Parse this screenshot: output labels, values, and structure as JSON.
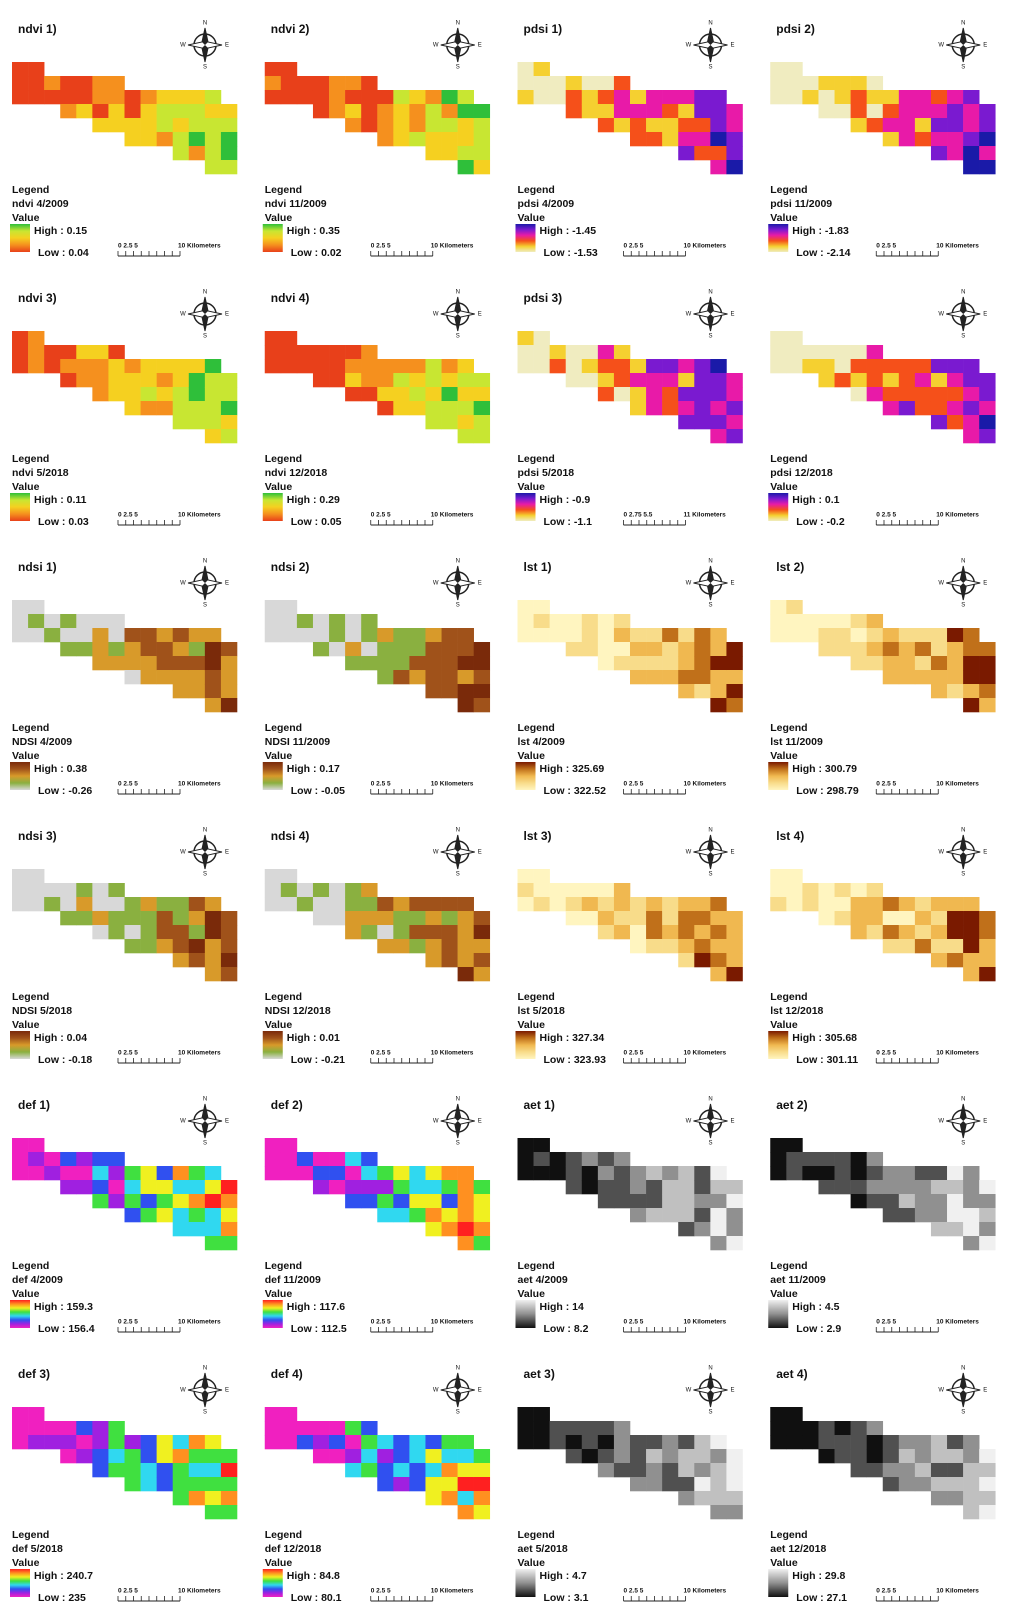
{
  "compass": [
    "N",
    "E",
    "S",
    "W"
  ],
  "groups": [
    {
      "colors": [
        "#2fbf3a",
        "#c8e632",
        "#f5d020",
        "#f5901e",
        "#e8401a"
      ],
      "panels": [
        {
          "title": "ndvi 1)",
          "legend": "Legend",
          "layer": "ndvi 4/2009",
          "value": "Value",
          "high": "High : 0.15",
          "low": "Low : 0.04",
          "scale": [
            "0 2.5 5",
            "10 Kilometers"
          ]
        },
        {
          "title": "ndvi 2)",
          "legend": "Legend",
          "layer": "ndvi 11/2009",
          "value": "Value",
          "high": "High : 0.35",
          "low": "Low : 0.02",
          "scale": [
            "0 2.5 5",
            "10 Kilometers"
          ]
        },
        {
          "title": "ndvi 3)",
          "legend": "Legend",
          "layer": "ndvi 5/2018",
          "value": "Value",
          "high": "High : 0.11",
          "low": "Low : 0.03",
          "scale": [
            "0 2.5 5",
            "10 Kilometers"
          ]
        },
        {
          "title": "ndvi 4)",
          "legend": "Legend",
          "layer": "ndvi 12/2018",
          "value": "Value",
          "high": "High : 0.29",
          "low": "Low : 0.05",
          "scale": [
            "0 2.5 5",
            "10 Kilometers"
          ]
        }
      ]
    },
    {
      "colors": [
        "#1a1aa8",
        "#7a1ad0",
        "#e81aa8",
        "#f5501a",
        "#f5d030",
        "#f0ecc0"
      ],
      "panels": [
        {
          "title": "pdsi 1)",
          "legend": "Legend",
          "layer": "pdsi 4/2009",
          "value": "Value",
          "high": "High : -1.45",
          "low": "Low : -1.53",
          "scale": [
            "0 2.5 5",
            "10 Kilometers"
          ]
        },
        {
          "title": "pdsi 2)",
          "legend": "Legend",
          "layer": "pdsi 11/2009",
          "value": "Value",
          "high": "High : -1.83",
          "low": "Low : -2.14",
          "scale": [
            "0 2.5 5",
            "10 Kilometers"
          ]
        },
        {
          "title": "pdsi 3)",
          "legend": "Legend",
          "layer": "pdsi 5/2018",
          "value": "Value",
          "high": "High : -0.9",
          "low": "Low : -1.1",
          "scale": [
            "0 2.75 5.5",
            "11 Kilometers"
          ]
        },
        {
          "legend": "Legend",
          "layer": "pdsi 12/2018",
          "value": "Value",
          "high": "High : 0.1",
          "low": "Low : -0.2",
          "scale": [
            "0 2.5 5",
            "10 Kilometers"
          ]
        }
      ]
    },
    {
      "colors": [
        "#7a2a0a",
        "#a0521a",
        "#d89a2a",
        "#8ab040",
        "#d8d8d8"
      ],
      "panels": [
        {
          "title": "ndsi 1)",
          "legend": "Legend",
          "layer": "NDSI 4/2009",
          "value": "Value",
          "high": "High : 0.38",
          "low": "Low : -0.26",
          "scale": [
            "0 2.5 5",
            "10 Kilometers"
          ]
        },
        {
          "title": "ndsi 2)",
          "legend": "Legend",
          "layer": "NDSI 11/2009",
          "value": "Value",
          "high": "High : 0.17",
          "low": "Low : -0.05",
          "scale": [
            "0 2.5 5",
            "10 Kilometers"
          ]
        },
        {
          "title": "ndsi 3)",
          "legend": "Legend",
          "layer": "NDSI 5/2018",
          "value": "Value",
          "high": "High : 0.04",
          "low": "Low : -0.18",
          "scale": [
            "0 2.5 5",
            "10 Kilometers"
          ]
        },
        {
          "title": "ndsi 4)",
          "legend": "Legend",
          "layer": "NDSI 12/2018",
          "value": "Value",
          "high": "High : 0.01",
          "low": "Low : -0.21",
          "scale": [
            "0 2.5 5",
            "10 Kilometers"
          ]
        }
      ]
    },
    {
      "colors": [
        "#7a1a00",
        "#c0701a",
        "#f0b850",
        "#f8dc8a",
        "#fff5c0"
      ],
      "panels": [
        {
          "title": "lst 1)",
          "legend": "Legend",
          "layer": "lst 4/2009",
          "value": "Value",
          "high": "High : 325.69",
          "low": "Low : 322.52",
          "scale": [
            "0 2.5 5",
            "10 Kilometers"
          ]
        },
        {
          "title": "lst 2)",
          "legend": "Legend",
          "layer": "lst 11/2009",
          "value": "Value",
          "high": "High : 300.79",
          "low": "Low : 298.79",
          "scale": [
            "0 2.5 5",
            "10 Kilometers"
          ]
        },
        {
          "title": "lst 3)",
          "legend": "Legend",
          "layer": "lst 5/2018",
          "value": "Value",
          "high": "High : 327.34",
          "low": "Low : 323.93",
          "scale": [
            "0 2.5 5",
            "10 Kilometers"
          ]
        },
        {
          "title": "lst 4)",
          "legend": "Legend",
          "layer": "lst 12/2018",
          "value": "Value",
          "high": "High : 305.68",
          "low": "Low : 301.11",
          "scale": [
            "0 2.5 5",
            "10 Kilometers"
          ]
        }
      ]
    },
    {
      "colors": [
        "#ff2020",
        "#ff9020",
        "#f0f020",
        "#40e040",
        "#30d8f0",
        "#3050f0",
        "#a020e0",
        "#f020c0"
      ],
      "panels": [
        {
          "title": "def 1)",
          "legend": "Legend",
          "layer": "def 4/2009",
          "value": "Value",
          "high": "High : 159.3",
          "low": "Low : 156.4",
          "scale": [
            "0 2.5 5",
            "10 Kilometers"
          ]
        },
        {
          "title": "def 2)",
          "legend": "Legend",
          "layer": "def 11/2009",
          "value": "Value",
          "high": "High : 117.6",
          "low": "Low : 112.5",
          "scale": [
            "0 2.5 5",
            "10 Kilometers"
          ]
        },
        {
          "title": "def 3)",
          "legend": "Legend",
          "layer": "def 5/2018",
          "value": "Value",
          "high": "High : 240.7",
          "low": "Low : 235",
          "scale": [
            "0 2.5 5",
            "10 Kilometers"
          ]
        },
        {
          "title": "def 4)",
          "legend": "Legend",
          "layer": "def 12/2018",
          "value": "Value",
          "high": "High : 84.8",
          "low": "Low : 80.1",
          "scale": [
            "0 2.5 5",
            "10 Kilometers"
          ]
        }
      ]
    },
    {
      "colors": [
        "#f0f0f0",
        "#c0c0c0",
        "#909090",
        "#505050",
        "#101010"
      ],
      "panels": [
        {
          "title": "aet 1)",
          "legend": "Legend",
          "layer": "aet 4/2009",
          "value": "Value",
          "high": "High : 14",
          "low": "Low : 8.2",
          "scale": [
            "0 2.5 5",
            "10 Kilometers"
          ]
        },
        {
          "title": "aet 2)",
          "legend": "Legend",
          "layer": "aet 11/2009",
          "value": "Value",
          "high": "High : 4.5",
          "low": "Low : 2.9",
          "scale": [
            "0 2.5 5",
            "10 Kilometers"
          ]
        },
        {
          "title": "aet 3)",
          "legend": "Legend",
          "layer": "aet 5/2018",
          "value": "Value",
          "high": "High : 4.7",
          "low": "Low : 3.1",
          "scale": [
            "0 2.5 5",
            "10 Kilometers"
          ]
        },
        {
          "title": "aet 4)",
          "legend": "Legend",
          "layer": "aet 12/2018",
          "value": "Value",
          "high": "High : 29.8",
          "low": "Low : 27.1",
          "scale": [
            "0 2.5 5",
            "10 Kilometers"
          ]
        }
      ]
    }
  ]
}
